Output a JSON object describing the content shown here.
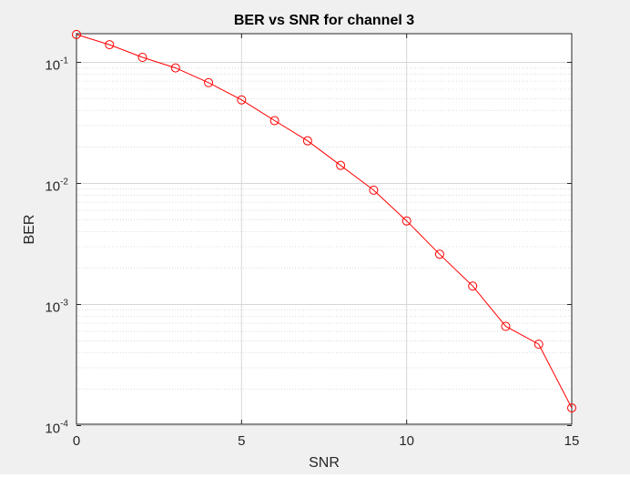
{
  "chart_data": {
    "type": "line",
    "title": "BER vs SNR for channel 3",
    "xlabel": "SNR",
    "ylabel": "BER",
    "xlim": [
      0,
      15
    ],
    "ylim": [
      0.0001,
      0.2
    ],
    "yscale": "log",
    "grid": true,
    "minor_grid": true,
    "x_ticks": [
      0,
      5,
      10,
      15
    ],
    "y_ticks": [
      {
        "value": 0.1,
        "base": "10",
        "exp": "-1"
      },
      {
        "value": 0.01,
        "base": "10",
        "exp": "-2"
      },
      {
        "value": 0.001,
        "base": "10",
        "exp": "-3"
      },
      {
        "value": 0.0001,
        "base": "10",
        "exp": "-4"
      }
    ],
    "series": [
      {
        "color": "#ff0000",
        "marker": "circle",
        "x": [
          0,
          1,
          2,
          3,
          4,
          5,
          6,
          7,
          8,
          9,
          10,
          11,
          12,
          13,
          14,
          15
        ],
        "y": [
          0.17,
          0.14,
          0.11,
          0.09,
          0.068,
          0.049,
          0.033,
          0.0225,
          0.0141,
          0.0088,
          0.0049,
          0.0026,
          0.00142,
          0.00066,
          0.00047,
          0.00014
        ]
      }
    ]
  }
}
